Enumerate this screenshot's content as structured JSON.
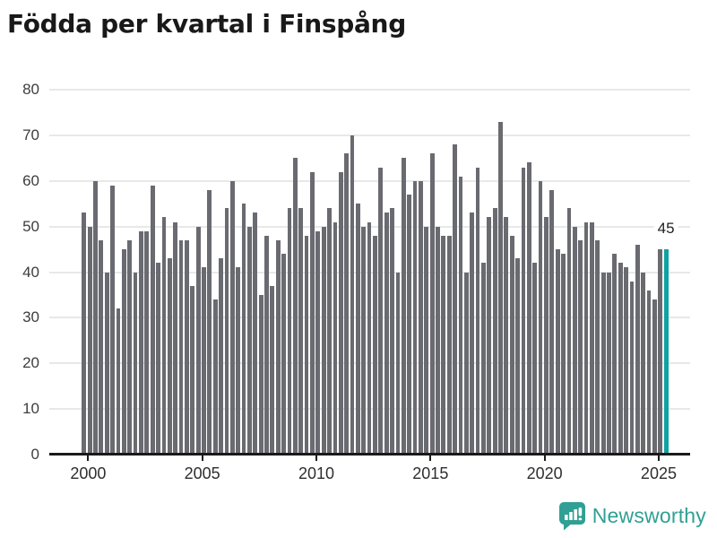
{
  "header": {
    "title": "Födda per kvartal i Finspång"
  },
  "chart_data": {
    "type": "bar",
    "title": "Födda per kvartal i Finspång",
    "frequency": "quarterly",
    "x_start": "2000-Q1",
    "x_end": "2025-Q3",
    "ylim": [
      0,
      80
    ],
    "y_ticks": [
      0,
      10,
      20,
      30,
      40,
      50,
      60,
      70,
      80
    ],
    "x_tick_labels": [
      "2000",
      "2005",
      "2010",
      "2015",
      "2020",
      "2025"
    ],
    "grid": "horizontal",
    "legend": "none",
    "series": [
      {
        "name": "Födda",
        "values": [
          53,
          50,
          60,
          47,
          40,
          59,
          32,
          45,
          47,
          40,
          49,
          49,
          59,
          42,
          52,
          43,
          51,
          47,
          47,
          37,
          50,
          41,
          58,
          34,
          43,
          54,
          60,
          41,
          55,
          50,
          53,
          35,
          48,
          37,
          47,
          44,
          54,
          65,
          54,
          48,
          62,
          49,
          50,
          54,
          51,
          62,
          66,
          70,
          55,
          50,
          51,
          48,
          63,
          53,
          54,
          40,
          65,
          57,
          60,
          60,
          50,
          66,
          50,
          48,
          48,
          68,
          61,
          40,
          53,
          63,
          42,
          52,
          54,
          73,
          52,
          48,
          43,
          63,
          64,
          42,
          60,
          52,
          58,
          45,
          44,
          54,
          50,
          47,
          51,
          51,
          47,
          40,
          40,
          44,
          42,
          41,
          38,
          46,
          40,
          36,
          34,
          45,
          45
        ]
      }
    ],
    "highlight_last_bar": true,
    "last_value": 45,
    "annotation_label": "45",
    "colors": {
      "bar": "#6a6a71",
      "highlight": "#0fa2a3",
      "gridline": "#e8e8e8",
      "axis": "#1a1a1a",
      "tick_text": "#3d3d3d"
    }
  },
  "footer": {
    "brand": "Newsworthy",
    "brand_color": "#2fa093"
  }
}
